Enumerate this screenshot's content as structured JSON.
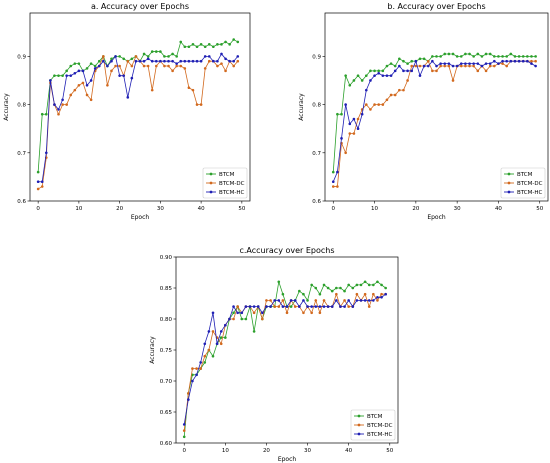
{
  "chart_data": [
    {
      "type": "line",
      "title": "a. Accuracy over Epochs",
      "xlabel": "Epoch",
      "ylabel": "Accuracy",
      "xlim": [
        -2,
        52
      ],
      "ylim": [
        0.6,
        0.99
      ],
      "xticks": [
        0,
        10,
        20,
        30,
        40,
        50
      ],
      "yticks": [
        0.6,
        0.7,
        0.8,
        0.9
      ],
      "ytick_labels": [
        "0.6",
        "0.7",
        "0.8",
        "0.9"
      ],
      "legend_position": "lower-right",
      "grid": false,
      "x": [
        0,
        1,
        2,
        3,
        4,
        5,
        6,
        7,
        8,
        9,
        10,
        11,
        12,
        13,
        14,
        15,
        16,
        17,
        18,
        19,
        20,
        21,
        22,
        23,
        24,
        25,
        26,
        27,
        28,
        29,
        30,
        31,
        32,
        33,
        34,
        35,
        36,
        37,
        38,
        39,
        40,
        41,
        42,
        43,
        44,
        45,
        46,
        47,
        48,
        49
      ],
      "series": [
        {
          "name": "BTCM",
          "color": "#2ca02c",
          "values": [
            0.66,
            0.78,
            0.78,
            0.85,
            0.86,
            0.86,
            0.86,
            0.87,
            0.88,
            0.885,
            0.885,
            0.87,
            0.875,
            0.885,
            0.88,
            0.89,
            0.9,
            0.88,
            0.895,
            0.9,
            0.9,
            0.895,
            0.89,
            0.895,
            0.9,
            0.89,
            0.905,
            0.9,
            0.91,
            0.91,
            0.91,
            0.9,
            0.9,
            0.905,
            0.9,
            0.93,
            0.92,
            0.92,
            0.925,
            0.92,
            0.925,
            0.92,
            0.925,
            0.92,
            0.925,
            0.925,
            0.93,
            0.925,
            0.935,
            0.93
          ]
        },
        {
          "name": "BTCM-DC",
          "color": "#d2691e",
          "values": [
            0.625,
            0.63,
            0.69,
            0.845,
            0.8,
            0.78,
            0.8,
            0.8,
            0.82,
            0.83,
            0.84,
            0.845,
            0.82,
            0.81,
            0.87,
            0.88,
            0.9,
            0.84,
            0.87,
            0.88,
            0.88,
            0.86,
            0.89,
            0.88,
            0.9,
            0.89,
            0.88,
            0.88,
            0.83,
            0.88,
            0.89,
            0.88,
            0.88,
            0.87,
            0.88,
            0.88,
            0.875,
            0.835,
            0.83,
            0.8,
            0.8,
            0.875,
            0.89,
            0.89,
            0.88,
            0.885,
            0.87,
            0.89,
            0.88,
            0.89
          ]
        },
        {
          "name": "BTCM-HC",
          "color": "#1f1fb4",
          "values": [
            0.64,
            0.64,
            0.7,
            0.85,
            0.8,
            0.79,
            0.81,
            0.86,
            0.86,
            0.865,
            0.87,
            0.87,
            0.84,
            0.85,
            0.875,
            0.88,
            0.89,
            0.88,
            0.89,
            0.9,
            0.86,
            0.86,
            0.815,
            0.855,
            0.89,
            0.89,
            0.89,
            0.895,
            0.89,
            0.89,
            0.89,
            0.89,
            0.89,
            0.89,
            0.885,
            0.89,
            0.89,
            0.89,
            0.89,
            0.89,
            0.89,
            0.9,
            0.9,
            0.89,
            0.89,
            0.905,
            0.895,
            0.89,
            0.89,
            0.9
          ]
        }
      ]
    },
    {
      "type": "line",
      "title": "b. Accuracy over Epochs",
      "xlabel": "Epoch",
      "ylabel": "Accuracy",
      "xlim": [
        -2,
        52
      ],
      "ylim": [
        0.6,
        0.99
      ],
      "xticks": [
        0,
        10,
        20,
        30,
        40,
        50
      ],
      "yticks": [
        0.6,
        0.7,
        0.8,
        0.9
      ],
      "ytick_labels": [
        "0.6",
        "0.7",
        "0.8",
        "0.9"
      ],
      "legend_position": "lower-right",
      "grid": false,
      "x": [
        0,
        1,
        2,
        3,
        4,
        5,
        6,
        7,
        8,
        9,
        10,
        11,
        12,
        13,
        14,
        15,
        16,
        17,
        18,
        19,
        20,
        21,
        22,
        23,
        24,
        25,
        26,
        27,
        28,
        29,
        30,
        31,
        32,
        33,
        34,
        35,
        36,
        37,
        38,
        39,
        40,
        41,
        42,
        43,
        44,
        45,
        46,
        47,
        48,
        49
      ],
      "series": [
        {
          "name": "BTCM",
          "color": "#2ca02c",
          "values": [
            0.66,
            0.78,
            0.78,
            0.86,
            0.84,
            0.85,
            0.86,
            0.85,
            0.86,
            0.87,
            0.87,
            0.87,
            0.87,
            0.88,
            0.885,
            0.88,
            0.895,
            0.89,
            0.885,
            0.89,
            0.89,
            0.895,
            0.895,
            0.89,
            0.9,
            0.9,
            0.9,
            0.905,
            0.905,
            0.905,
            0.9,
            0.9,
            0.905,
            0.905,
            0.9,
            0.905,
            0.9,
            0.905,
            0.905,
            0.9,
            0.9,
            0.9,
            0.9,
            0.905,
            0.9,
            0.9,
            0.9,
            0.9,
            0.9,
            0.9
          ]
        },
        {
          "name": "BTCM-DC",
          "color": "#d2691e",
          "values": [
            0.63,
            0.63,
            0.72,
            0.7,
            0.74,
            0.74,
            0.77,
            0.79,
            0.8,
            0.79,
            0.8,
            0.8,
            0.8,
            0.81,
            0.82,
            0.82,
            0.83,
            0.83,
            0.85,
            0.88,
            0.88,
            0.88,
            0.88,
            0.89,
            0.87,
            0.87,
            0.88,
            0.88,
            0.88,
            0.85,
            0.88,
            0.88,
            0.88,
            0.88,
            0.88,
            0.87,
            0.88,
            0.87,
            0.88,
            0.88,
            0.885,
            0.885,
            0.88,
            0.89,
            0.89,
            0.89,
            0.89,
            0.89,
            0.89,
            0.89
          ]
        },
        {
          "name": "BTCM-HC",
          "color": "#1f1fb4",
          "values": [
            0.64,
            0.66,
            0.73,
            0.8,
            0.76,
            0.77,
            0.75,
            0.78,
            0.83,
            0.85,
            0.86,
            0.865,
            0.86,
            0.86,
            0.86,
            0.87,
            0.88,
            0.87,
            0.87,
            0.87,
            0.89,
            0.86,
            0.88,
            0.88,
            0.89,
            0.88,
            0.885,
            0.885,
            0.885,
            0.88,
            0.88,
            0.885,
            0.885,
            0.885,
            0.885,
            0.885,
            0.88,
            0.885,
            0.885,
            0.89,
            0.885,
            0.89,
            0.89,
            0.89,
            0.89,
            0.89,
            0.89,
            0.89,
            0.885,
            0.88
          ]
        }
      ]
    },
    {
      "type": "line",
      "title": "c.Accuracy over Epochs",
      "xlabel": "Epoch",
      "ylabel": "Accuracy",
      "xlim": [
        -2,
        52
      ],
      "ylim": [
        0.6,
        0.9
      ],
      "xticks": [
        0,
        10,
        20,
        30,
        40,
        50
      ],
      "yticks": [
        0.6,
        0.65,
        0.7,
        0.75,
        0.8,
        0.85,
        0.9
      ],
      "ytick_labels": [
        "0.60",
        "0.65",
        "0.70",
        "0.75",
        "0.80",
        "0.85",
        "0.90"
      ],
      "legend_position": "lower-right",
      "grid": false,
      "x": [
        0,
        1,
        2,
        3,
        4,
        5,
        6,
        7,
        8,
        9,
        10,
        11,
        12,
        13,
        14,
        15,
        16,
        17,
        18,
        19,
        20,
        21,
        22,
        23,
        24,
        25,
        26,
        27,
        28,
        29,
        30,
        31,
        32,
        33,
        34,
        35,
        36,
        37,
        38,
        39,
        40,
        41,
        42,
        43,
        44,
        45,
        46,
        47,
        48,
        49
      ],
      "series": [
        {
          "name": "BTCM",
          "color": "#2ca02c",
          "values": [
            0.61,
            0.68,
            0.71,
            0.71,
            0.72,
            0.73,
            0.75,
            0.74,
            0.76,
            0.77,
            0.77,
            0.8,
            0.81,
            0.82,
            0.8,
            0.8,
            0.82,
            0.78,
            0.82,
            0.8,
            0.82,
            0.82,
            0.82,
            0.86,
            0.84,
            0.82,
            0.82,
            0.83,
            0.845,
            0.84,
            0.83,
            0.855,
            0.85,
            0.84,
            0.855,
            0.85,
            0.845,
            0.85,
            0.85,
            0.845,
            0.855,
            0.85,
            0.855,
            0.855,
            0.86,
            0.855,
            0.855,
            0.86,
            0.855,
            0.85
          ]
        },
        {
          "name": "BTCM-DC",
          "color": "#d2691e",
          "values": [
            0.62,
            0.68,
            0.72,
            0.72,
            0.72,
            0.74,
            0.75,
            0.78,
            0.77,
            0.76,
            0.79,
            0.8,
            0.8,
            0.82,
            0.81,
            0.82,
            0.82,
            0.81,
            0.82,
            0.8,
            0.83,
            0.83,
            0.82,
            0.82,
            0.83,
            0.81,
            0.83,
            0.82,
            0.82,
            0.81,
            0.82,
            0.81,
            0.83,
            0.81,
            0.83,
            0.82,
            0.82,
            0.84,
            0.82,
            0.83,
            0.82,
            0.82,
            0.84,
            0.83,
            0.84,
            0.82,
            0.84,
            0.83,
            0.84,
            0.84
          ]
        },
        {
          "name": "BTCM-HC",
          "color": "#1f1fb4",
          "values": [
            0.63,
            0.67,
            0.7,
            0.71,
            0.73,
            0.76,
            0.78,
            0.81,
            0.76,
            0.78,
            0.79,
            0.8,
            0.82,
            0.81,
            0.81,
            0.82,
            0.82,
            0.82,
            0.82,
            0.81,
            0.82,
            0.82,
            0.83,
            0.83,
            0.82,
            0.82,
            0.83,
            0.83,
            0.82,
            0.83,
            0.82,
            0.82,
            0.82,
            0.82,
            0.82,
            0.82,
            0.82,
            0.83,
            0.82,
            0.82,
            0.83,
            0.82,
            0.83,
            0.83,
            0.83,
            0.83,
            0.83,
            0.835,
            0.835,
            0.84
          ]
        }
      ]
    }
  ]
}
